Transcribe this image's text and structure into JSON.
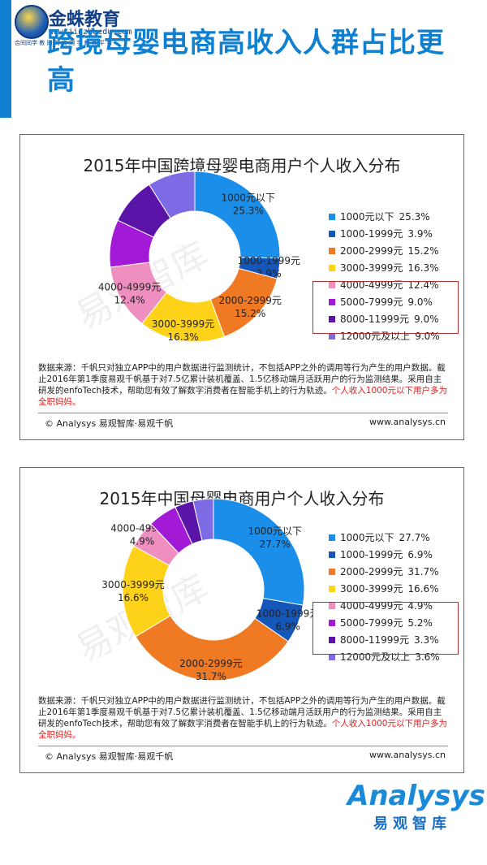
{
  "header": {
    "logo_name": "金蛛教育",
    "logo_url": "www.jinzhuedu.com",
    "logo_slogan": "合同同学 教 同 同 育 同 学 教 育 平 台",
    "title": "跨境母婴电商高收入人群占比更高"
  },
  "colors": {
    "accent": "#0f7fd0",
    "highlight_border": "#b03030",
    "source_highlight": "#e02020"
  },
  "chart_data": [
    {
      "type": "pie",
      "title": "2015年中国跨境母婴电商用户个人收入分布",
      "categories": [
        "1000元以下",
        "1000-1999元",
        "2000-2999元",
        "3000-3999元",
        "4000-4999元",
        "5000-7999元",
        "8000-11999元",
        "12000元及以上"
      ],
      "values": [
        25.3,
        3.9,
        15.2,
        16.3,
        12.4,
        9.0,
        9.0,
        9.0
      ],
      "value_labels": [
        "25.3%",
        "3.9%",
        "15.2%",
        "16.3%",
        "12.4%",
        "9.0%",
        "9.0%",
        "9.0%"
      ],
      "colors": [
        "#1a8ee8",
        "#1457b8",
        "#f07a24",
        "#ffd21a",
        "#ef8fc0",
        "#a21ad6",
        "#5a14a8",
        "#7d6be6"
      ],
      "legend_position": "right",
      "highlighted_categories": [
        "5000-7999元",
        "8000-11999元",
        "12000元及以上"
      ],
      "legend": [
        {
          "label": "1000元以下",
          "value": "25.3%"
        },
        {
          "label": "1000-1999元",
          "value": "3.9%"
        },
        {
          "label": "2000-2999元",
          "value": "15.2%"
        },
        {
          "label": "3000-3999元",
          "value": "16.3%"
        },
        {
          "label": "4000-4999元",
          "value": "12.4%"
        },
        {
          "label": "5000-7999元",
          "value": "9.0%"
        },
        {
          "label": "8000-11999元",
          "value": "9.0%"
        },
        {
          "label": "12000元及以上",
          "value": "9.0%"
        }
      ],
      "source_text": "数据来源：千帆只对独立APP中的用户数据进行监测统计，不包括APP之外的调用等行为产生的用户数据。截止2016年第1季度易观千帆基于对7.5亿累计装机覆盖、1.5亿移动端月活跃用户的行为监测结果。采用自主研发的enfoTech技术，帮助您有效了解数字消费者在智能手机上的行为轨迹。",
      "source_highlight": "个人收入1000元以下用户多为全职妈妈。",
      "copyright": "© Analysys 易观智库·易观千帆",
      "website": "www.analysys.cn",
      "watermark": "易观智库"
    },
    {
      "type": "pie",
      "title": "2015年中国母婴电商用户个人收入分布",
      "categories": [
        "1000元以下",
        "1000-1999元",
        "2000-2999元",
        "3000-3999元",
        "4000-4999元",
        "5000-7999元",
        "8000-11999元",
        "12000元及以上"
      ],
      "values": [
        27.7,
        6.9,
        31.7,
        16.6,
        4.9,
        5.2,
        3.3,
        3.6
      ],
      "value_labels": [
        "27.7%",
        "6.9%",
        "31.7%",
        "16.6%",
        "4.9%",
        "5.2%",
        "3.3%",
        "3.6%"
      ],
      "colors": [
        "#1a8ee8",
        "#1457b8",
        "#f07a24",
        "#ffd21a",
        "#ef8fc0",
        "#a21ad6",
        "#5a14a8",
        "#7d6be6"
      ],
      "legend_position": "right",
      "highlighted_categories": [
        "5000-7999元",
        "8000-11999元",
        "12000元及以上"
      ],
      "legend": [
        {
          "label": "1000元以下",
          "value": "27.7%"
        },
        {
          "label": "1000-1999元",
          "value": "6.9%"
        },
        {
          "label": "2000-2999元",
          "value": "31.7%"
        },
        {
          "label": "3000-3999元",
          "value": "16.6%"
        },
        {
          "label": "4000-4999元",
          "value": "4.9%"
        },
        {
          "label": "5000-7999元",
          "value": "5.2%"
        },
        {
          "label": "8000-11999元",
          "value": "3.3%"
        },
        {
          "label": "12000元及以上",
          "value": "3.6%"
        }
      ],
      "source_text": "数据来源：千帆只对独立APP中的用户数据进行监测统计，不包括APP之外的调用等行为产生的用户数据。截止2016年第1季度易观千帆基于对7.5亿累计装机覆盖、1.5亿移动端月活跃用户的行为监测结果。采用自主研发的enfoTech技术，帮助您有效了解数字消费者在智能手机上的行为轨迹。",
      "source_highlight": "个人收入1000元以下用户多为全职妈妈。",
      "copyright": "© Analysys 易观智库·易观千帆",
      "website": "www.analysys.cn",
      "watermark": "易观智库"
    }
  ],
  "brand": {
    "name": "Analysys",
    "sub": "易观智库"
  }
}
